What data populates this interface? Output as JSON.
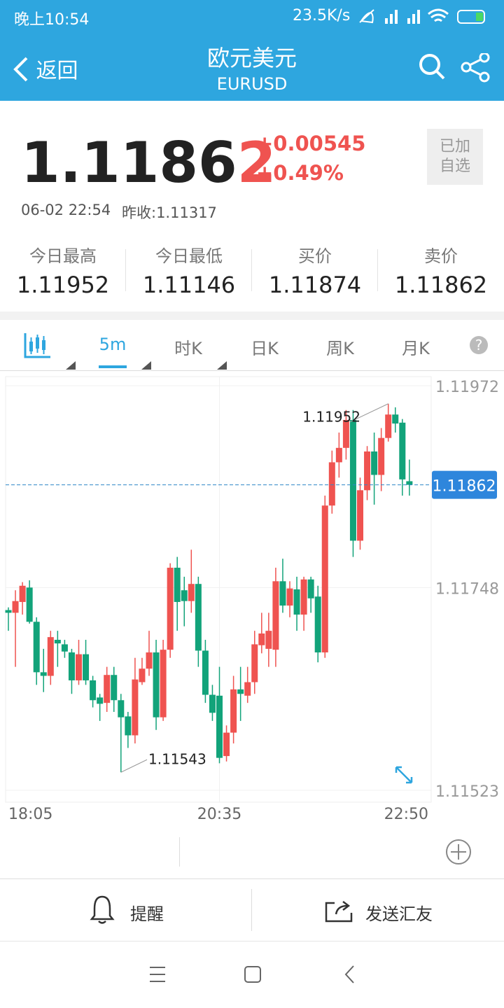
{
  "status_bar": {
    "time": "晚上10:54",
    "speed": "23.5K/s"
  },
  "header": {
    "back": "返回",
    "title": "欧元美元",
    "subtitle": "EURUSD"
  },
  "quote": {
    "price_head": "1.1186",
    "price_tail": "2",
    "change": "+0.00545",
    "change_pct": "+0.49%",
    "watch_button": [
      "已加",
      "自选"
    ],
    "time": "06-02 22:54",
    "prev_close": "昨收:1.11317"
  },
  "stats": [
    {
      "label": "今日最高",
      "value": "1.11952"
    },
    {
      "label": "今日最低",
      "value": "1.11146"
    },
    {
      "label": "买价",
      "value": "1.11874"
    },
    {
      "label": "卖价",
      "value": "1.11862"
    }
  ],
  "tabs": [
    "5m",
    "时K",
    "日K",
    "周K",
    "月K"
  ],
  "chart": {
    "type": "candlestick",
    "up_color": "#ef5350",
    "down_color": "#12a37a",
    "grid": true,
    "ylim": [
      1.11523,
      1.11972
    ],
    "yticks": [
      1.11972,
      1.11748,
      1.11523
    ],
    "last": 1.11862,
    "max": 1.11952,
    "min": 1.11543,
    "x": [
      "18:05",
      null,
      null,
      null,
      null,
      null,
      null,
      null,
      null,
      null,
      null,
      null,
      null,
      null,
      null,
      null,
      null,
      null,
      null,
      null,
      null,
      null,
      null,
      null,
      null,
      null,
      null,
      null,
      null,
      null,
      "20:35",
      null,
      null,
      null,
      null,
      null,
      null,
      null,
      null,
      null,
      null,
      null,
      null,
      null,
      null,
      null,
      null,
      null,
      null,
      null,
      null,
      null,
      null,
      null,
      null,
      null,
      null,
      "22:50"
    ],
    "open": [
      1.11723,
      1.1172,
      1.11732,
      1.11748,
      1.1171,
      1.11654,
      1.1165,
      1.1169,
      1.11685,
      1.11676,
      1.11645,
      1.11674,
      1.11645,
      1.11626,
      1.1162,
      1.11651,
      1.11623,
      1.11605,
      1.11584,
      1.11643,
      1.11658,
      1.11676,
      1.11604,
      1.11679,
      1.1177,
      1.11745,
      1.11733,
      1.11752,
      1.11678,
      1.11629,
      1.11628,
      1.11561,
      1.11587,
      1.11635,
      1.11628,
      1.11643,
      1.11684,
      1.1168,
      1.11679,
      1.11755,
      1.11728,
      1.11746,
      1.11718,
      1.11757,
      1.11738,
      1.11676,
      1.11839,
      1.11887,
      1.11903,
      1.11934,
      1.118,
      1.11856,
      1.11899,
      1.11873,
      1.11914,
      1.1194,
      1.11931,
      1.11866
    ],
    "high": [
      1.11726,
      1.11745,
      1.11754,
      1.11756,
      1.11715,
      1.1168,
      1.117,
      1.117,
      1.1169,
      1.1168,
      1.1169,
      1.1169,
      1.1165,
      1.1163,
      1.1166,
      1.1166,
      1.1163,
      1.1161,
      1.1167,
      1.1167,
      1.117,
      1.1169,
      1.1169,
      1.11775,
      1.11782,
      1.1176,
      1.1179,
      1.1176,
      1.1169,
      1.1164,
      1.1166,
      1.11595,
      1.1165,
      1.1166,
      1.1166,
      1.117,
      1.1172,
      1.1172,
      1.1177,
      1.1178,
      1.11755,
      1.1176,
      1.1176,
      1.1176,
      1.1175,
      1.1185,
      1.119,
      1.1192,
      1.11945,
      1.11945,
      1.1187,
      1.11905,
      1.1192,
      1.11925,
      1.11952,
      1.11948,
      1.11935,
      1.1189
    ],
    "low": [
      1.117,
      1.1166,
      1.11718,
      1.11708,
      1.1164,
      1.11632,
      1.1164,
      1.1166,
      1.1167,
      1.1163,
      1.1164,
      1.1164,
      1.11615,
      1.116,
      1.1161,
      1.1161,
      1.11543,
      1.1157,
      1.11575,
      1.1164,
      1.1165,
      1.1159,
      1.116,
      1.1167,
      1.117,
      1.11705,
      1.1172,
      1.1166,
      1.1162,
      1.116,
      1.11553,
      1.11555,
      1.11575,
      1.116,
      1.1162,
      1.1163,
      1.11675,
      1.1166,
      1.1166,
      1.1172,
      1.11715,
      1.117,
      1.117,
      1.1172,
      1.11665,
      1.1167,
      1.1183,
      1.1187,
      1.1189,
      1.11782,
      1.1179,
      1.11845,
      1.1184,
      1.11855,
      1.1191,
      1.1192,
      1.1185,
      1.1185
    ],
    "close": [
      1.1172,
      1.11733,
      1.1175,
      1.1171,
      1.11654,
      1.1165,
      1.11693,
      1.11686,
      1.11677,
      1.11645,
      1.11674,
      1.11645,
      1.11623,
      1.11619,
      1.11651,
      1.11623,
      1.11604,
      1.11584,
      1.11646,
      1.11658,
      1.11676,
      1.11604,
      1.11679,
      1.1177,
      1.11732,
      1.11733,
      1.11752,
      1.11678,
      1.11629,
      1.11609,
      1.11559,
      1.11587,
      1.11635,
      1.1163,
      1.11643,
      1.11685,
      1.11697,
      1.117,
      1.11755,
      1.11728,
      1.11747,
      1.11718,
      1.11757,
      1.11736,
      1.11676,
      1.11839,
      1.11887,
      1.11903,
      1.11934,
      1.118,
      1.11856,
      1.11899,
      1.11873,
      1.11914,
      1.1194,
      1.1193,
      1.11868,
      1.11862
    ]
  },
  "actions": [
    "提醒",
    "发送汇友"
  ]
}
